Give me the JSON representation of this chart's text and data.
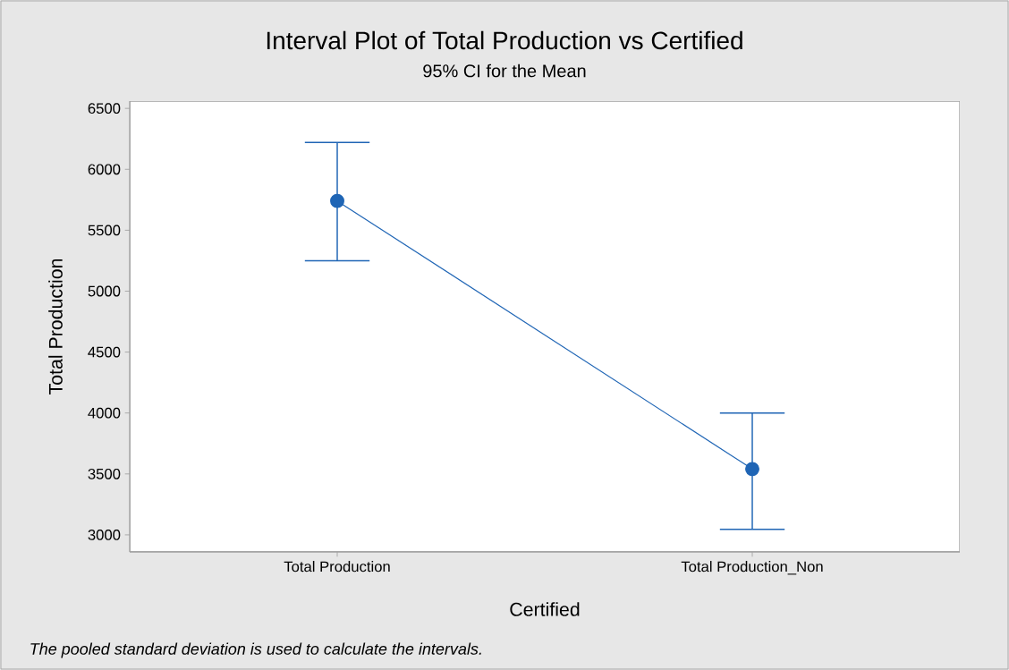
{
  "chart_data": {
    "type": "line",
    "title": "Interval Plot of Total Production vs Certified",
    "subtitle": "95% CI for the Mean",
    "xlabel": "Certified",
    "ylabel": "Total Production",
    "annotations": [
      "The pooled standard deviation is used to calculate the intervals."
    ],
    "categories": [
      "Total Production",
      "Total Production_Non"
    ],
    "values": [
      5740,
      3540
    ],
    "errors": [
      [
        5250,
        6220
      ],
      [
        3045,
        4000
      ]
    ],
    "color": "#1f65b5",
    "ylim": [
      2860,
      6560
    ],
    "yticks": [
      3000,
      3500,
      4000,
      4500,
      5000,
      5500,
      6000,
      6500
    ],
    "grid": false,
    "marker": "circle",
    "line_style": "solid"
  }
}
